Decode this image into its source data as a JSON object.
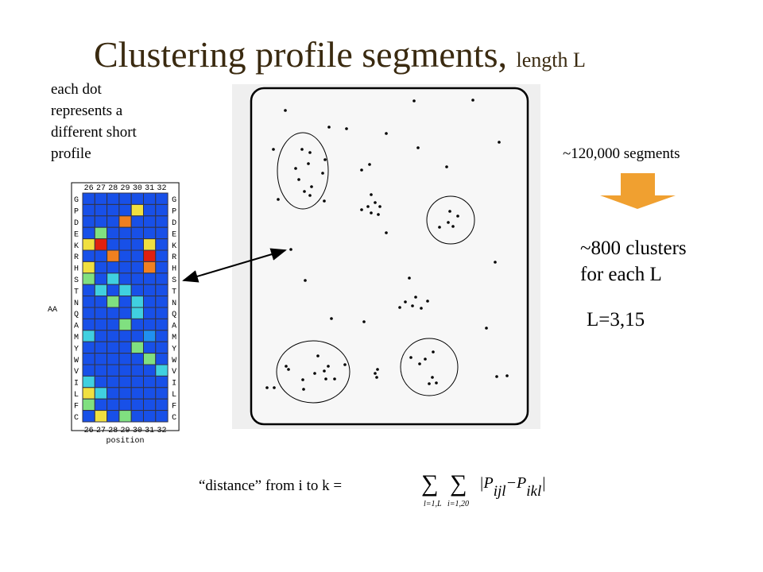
{
  "title": {
    "main": "Clustering profile segments,",
    "suffix": "length L"
  },
  "note": [
    "each dot",
    "represents a",
    "different short",
    "profile"
  ],
  "heatmap": {
    "columns": [
      26,
      27,
      28,
      29,
      30,
      31,
      32
    ],
    "rows": [
      "G",
      "P",
      "D",
      "E",
      "K",
      "R",
      "H",
      "S",
      "T",
      "N",
      "Q",
      "A",
      "M",
      "Y",
      "W",
      "V",
      "I",
      "L",
      "F",
      "C"
    ],
    "y_label": "AA",
    "x_label": "position"
  },
  "segments": "~120,000 segments",
  "clusters": [
    "~800 clusters",
    "for each L"
  ],
  "lengths": "L=3,15",
  "formula": {
    "lhs": "“distance” from i to k =",
    "sum1": "∑",
    "sum1_index": "l=1,L",
    "sum2": "∑",
    "sum2_index": "i=1,20",
    "term": "|P",
    "sub1": "ijl",
    "minus": "−P",
    "sub2": "ikl",
    "close": "|"
  }
}
